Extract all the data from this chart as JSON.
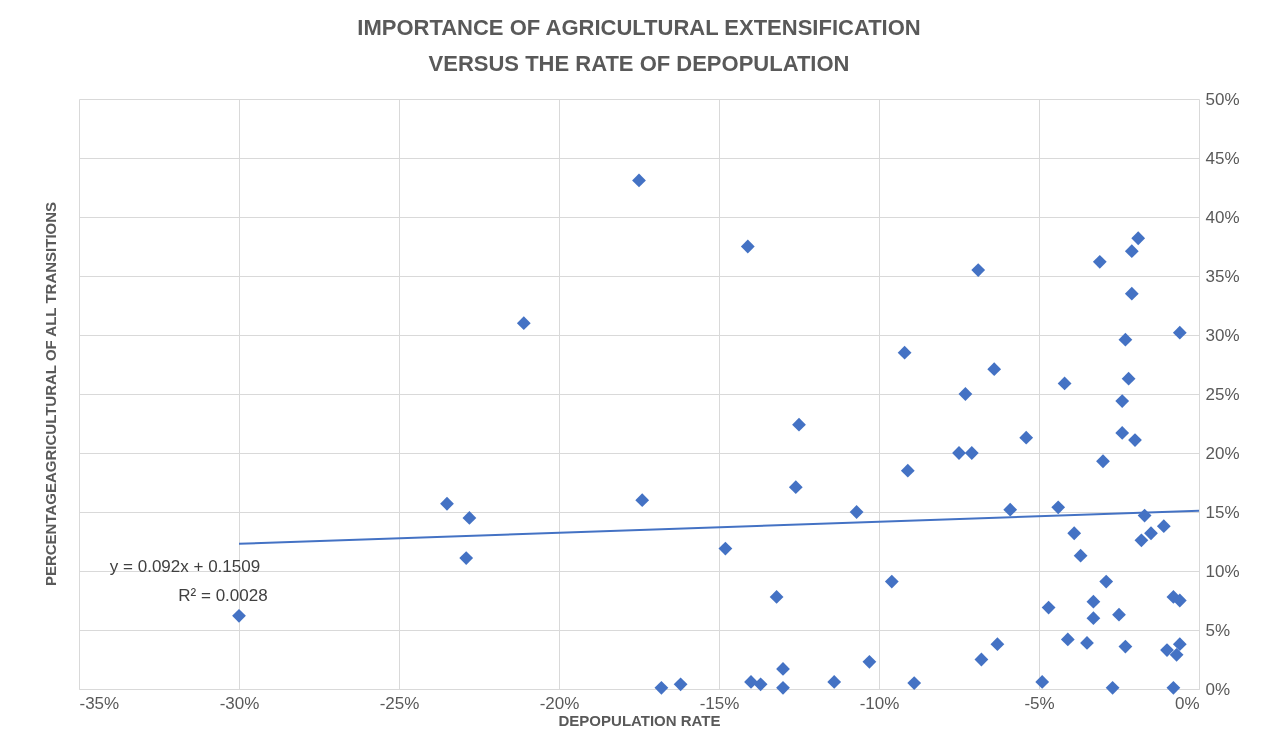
{
  "chart_data": {
    "type": "scatter",
    "title": "IMPORTANCE OF AGRICULTURAL EXTENSIFICATION VERSUS THE RATE OF DEPOPULATION",
    "xlabel": "DEPOPULATION RATE",
    "ylabel": "PERCENTAGEAGRICULTURAL OF ALL TRANSITIONS",
    "xlim": [
      -35,
      0
    ],
    "xticks": [
      {
        "value": -35,
        "label": "-35%"
      },
      {
        "value": -30,
        "label": "-30%"
      },
      {
        "value": -25,
        "label": "-25%"
      },
      {
        "value": -20,
        "label": "-20%"
      },
      {
        "value": -15,
        "label": "-15%"
      },
      {
        "value": -10,
        "label": "-10%"
      },
      {
        "value": -5,
        "label": "-5%"
      },
      {
        "value": 0,
        "label": "0%"
      }
    ],
    "ylim": [
      0,
      50
    ],
    "yticks": [
      {
        "value": 0,
        "label": "0%"
      },
      {
        "value": 5,
        "label": "5%"
      },
      {
        "value": 10,
        "label": "10%"
      },
      {
        "value": 15,
        "label": "15%"
      },
      {
        "value": 20,
        "label": "20%"
      },
      {
        "value": 25,
        "label": "25%"
      },
      {
        "value": 30,
        "label": "30%"
      },
      {
        "value": 35,
        "label": "35%"
      },
      {
        "value": 40,
        "label": "40%"
      },
      {
        "value": 45,
        "label": "45%"
      },
      {
        "value": 50,
        "label": "50%"
      }
    ],
    "grid": true,
    "marker": "diamond",
    "annotations": [
      "y = 0.092x + 0.1509",
      "R² = 0.0028"
    ],
    "series": [
      {
        "color": "#4472c4",
        "x": [
          -30,
          -23.5,
          -22.8,
          -22.9,
          -21.1,
          -17.5,
          -17.4,
          -16.8,
          -16.2,
          -14.8,
          -14.1,
          -14.0,
          -13.7,
          -13.2,
          -13.0,
          -13.0,
          -12.6,
          -12.5,
          -11.4,
          -10.7,
          -10.3,
          -9.6,
          -9.2,
          -9.1,
          -8.9,
          -7.5,
          -7.3,
          -7.1,
          -6.9,
          -6.8,
          -6.4,
          -6.3,
          -5.4,
          -5.9,
          -4.9,
          -4.7,
          -4.4,
          -4.2,
          -4.1,
          -3.9,
          -3.7,
          -3.5,
          -3.3,
          -3.3,
          -3.1,
          -3.0,
          -2.9,
          -2.7,
          -2.5,
          -2.4,
          -2.4,
          -2.0,
          -2.3,
          -2.3,
          -2.2,
          -2.1,
          -2.1,
          -1.9,
          -1.8,
          -1.7,
          -1.5,
          -1.1,
          -1.0,
          -0.8,
          -0.6,
          -0.7,
          -0.8,
          -0.6,
          -0.6
        ],
        "values": [
          6.2,
          15.7,
          14.5,
          11.1,
          31.0,
          43.1,
          16.0,
          0.1,
          0.4,
          11.9,
          37.5,
          0.6,
          0.4,
          7.8,
          1.7,
          0.1,
          17.1,
          22.4,
          0.6,
          15.0,
          2.3,
          9.1,
          28.5,
          18.5,
          0.5,
          20.0,
          25.0,
          20.0,
          35.5,
          2.5,
          27.1,
          3.8,
          21.3,
          15.2,
          0.6,
          6.9,
          15.4,
          25.9,
          4.2,
          13.2,
          11.3,
          3.9,
          7.4,
          6.0,
          36.2,
          19.3,
          9.1,
          0.1,
          6.3,
          24.4,
          21.7,
          21.1,
          29.6,
          3.6,
          26.3,
          33.5,
          37.1,
          38.2,
          12.6,
          14.7,
          13.2,
          13.8,
          3.3,
          7.8,
          7.5,
          2.9,
          0.1,
          3.8,
          30.2
        ]
      },
      {
        "type": "line",
        "marker": "none",
        "color": "#4472c4",
        "x": [
          -30,
          0
        ],
        "values": [
          12.3,
          15.1
        ]
      }
    ]
  }
}
